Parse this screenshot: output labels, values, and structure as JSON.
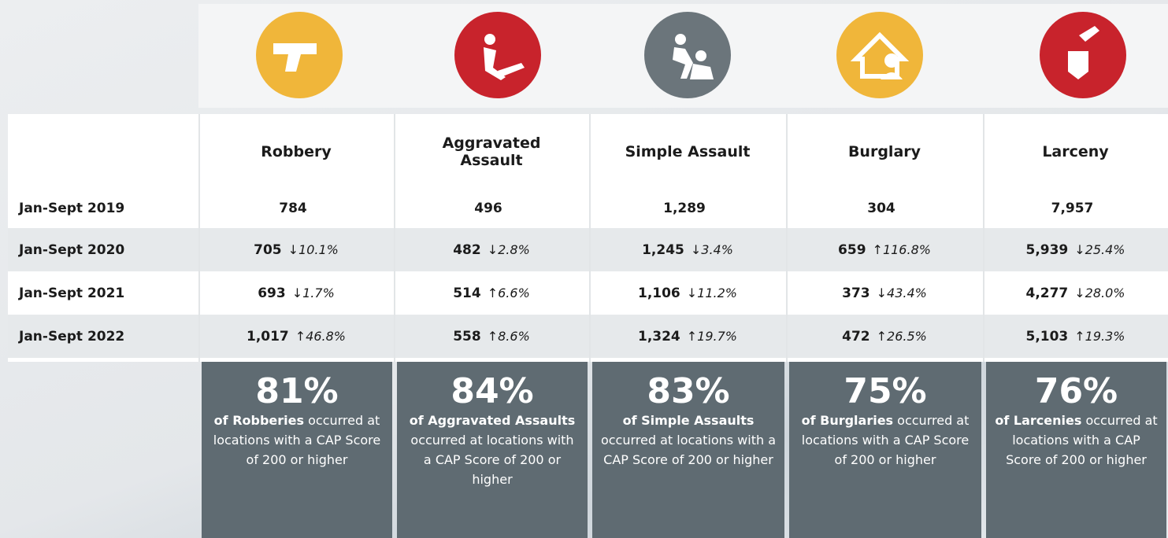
{
  "table": {
    "columns": [
      "Robbery",
      "Aggravated Assault",
      "Simple Assault",
      "Burglary",
      "Larceny"
    ],
    "rows": [
      {
        "label": "Jan-Sept 2019",
        "cells": [
          {
            "value": "784"
          },
          {
            "value": "496"
          },
          {
            "value": "1,289"
          },
          {
            "value": "304"
          },
          {
            "value": "7,957"
          }
        ]
      },
      {
        "label": "Jan-Sept 2020",
        "cells": [
          {
            "value": "705",
            "change": "↓10.1%"
          },
          {
            "value": "482",
            "change": "↓2.8%"
          },
          {
            "value": "1,245",
            "change": "↓3.4%"
          },
          {
            "value": "659",
            "change": "↑116.8%"
          },
          {
            "value": "5,939",
            "change": "↓25.4%"
          }
        ]
      },
      {
        "label": "Jan-Sept 2021",
        "cells": [
          {
            "value": "693",
            "change": "↓1.7%"
          },
          {
            "value": "514",
            "change": "↑6.6%"
          },
          {
            "value": "1,106",
            "change": "↓11.2%"
          },
          {
            "value": "373",
            "change": "↓43.4%"
          },
          {
            "value": "4,277",
            "change": "↓28.0%"
          }
        ]
      },
      {
        "label": "Jan-Sept 2022",
        "cells": [
          {
            "value": "1,017",
            "change": "↑46.8%"
          },
          {
            "value": "558",
            "change": "↑8.6%"
          },
          {
            "value": "1,324",
            "change": "↑19.7%"
          },
          {
            "value": "472",
            "change": "↑26.5%"
          },
          {
            "value": "5,103",
            "change": "↑19.3%"
          }
        ]
      }
    ]
  },
  "summary": [
    {
      "percent": "81%",
      "subject": "of Robberies",
      "text": "occurred at locations with a CAP Score of 200 or higher"
    },
    {
      "percent": "84%",
      "subject": "of Aggravated Assaults",
      "text": "occurred at locations with a CAP Score of 200 or higher"
    },
    {
      "percent": "83%",
      "subject": "of Simple Assaults",
      "text": "occurred at locations with a CAP Score of 200 or higher"
    },
    {
      "percent": "75%",
      "subject": "of Burglaries",
      "text": "occurred at locations with a CAP Score of 200 or higher"
    },
    {
      "percent": "76%",
      "subject": "of Larcenies",
      "text": "occurred at locations with a CAP Score of 200 or higher"
    }
  ]
}
